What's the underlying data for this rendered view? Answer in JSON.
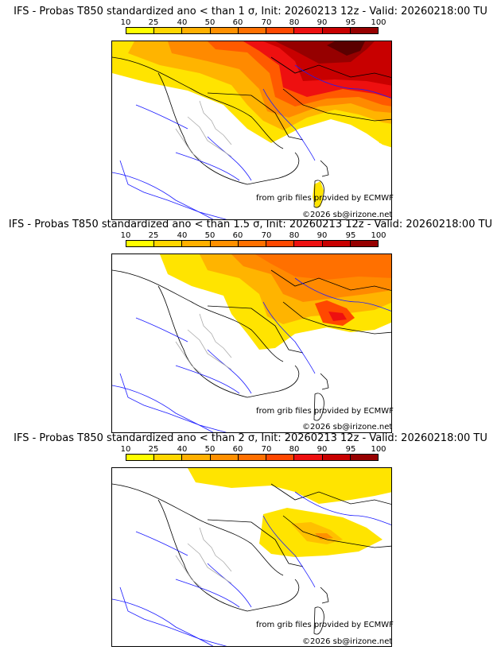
{
  "colorbar": {
    "ticks": [
      "10",
      "25",
      "40",
      "50",
      "60",
      "70",
      "80",
      "90",
      "95",
      "100"
    ],
    "colors": [
      "#ffff00",
      "#ffd700",
      "#ffb000",
      "#ff9000",
      "#ff7000",
      "#ff4800",
      "#ee1010",
      "#c80000",
      "#960000",
      "#5a0000"
    ]
  },
  "panels": [
    {
      "title": "IFS - Probas T850  standardized ano < than 1 σ, Init: 20260213 12z - Valid: 20260218:00 TU",
      "credit": "from grib files provided by ECMWF",
      "copyright": "©2026 sb@irizone.net"
    },
    {
      "title": "IFS - Probas T850  standardized ano < than 1.5 σ, Init: 20260213 12z - Valid: 20260218:00 TU",
      "credit": "from grib files provided by ECMWF",
      "copyright": "©2026 sb@irizone.net"
    },
    {
      "title": "IFS - Probas T850  standardized ano < than 2 σ, Init: 20260213 12z - Valid: 20260218:00 TU",
      "credit": "from grib files provided by ECMWF",
      "copyright": "©2026 sb@irizone.net"
    }
  ]
}
